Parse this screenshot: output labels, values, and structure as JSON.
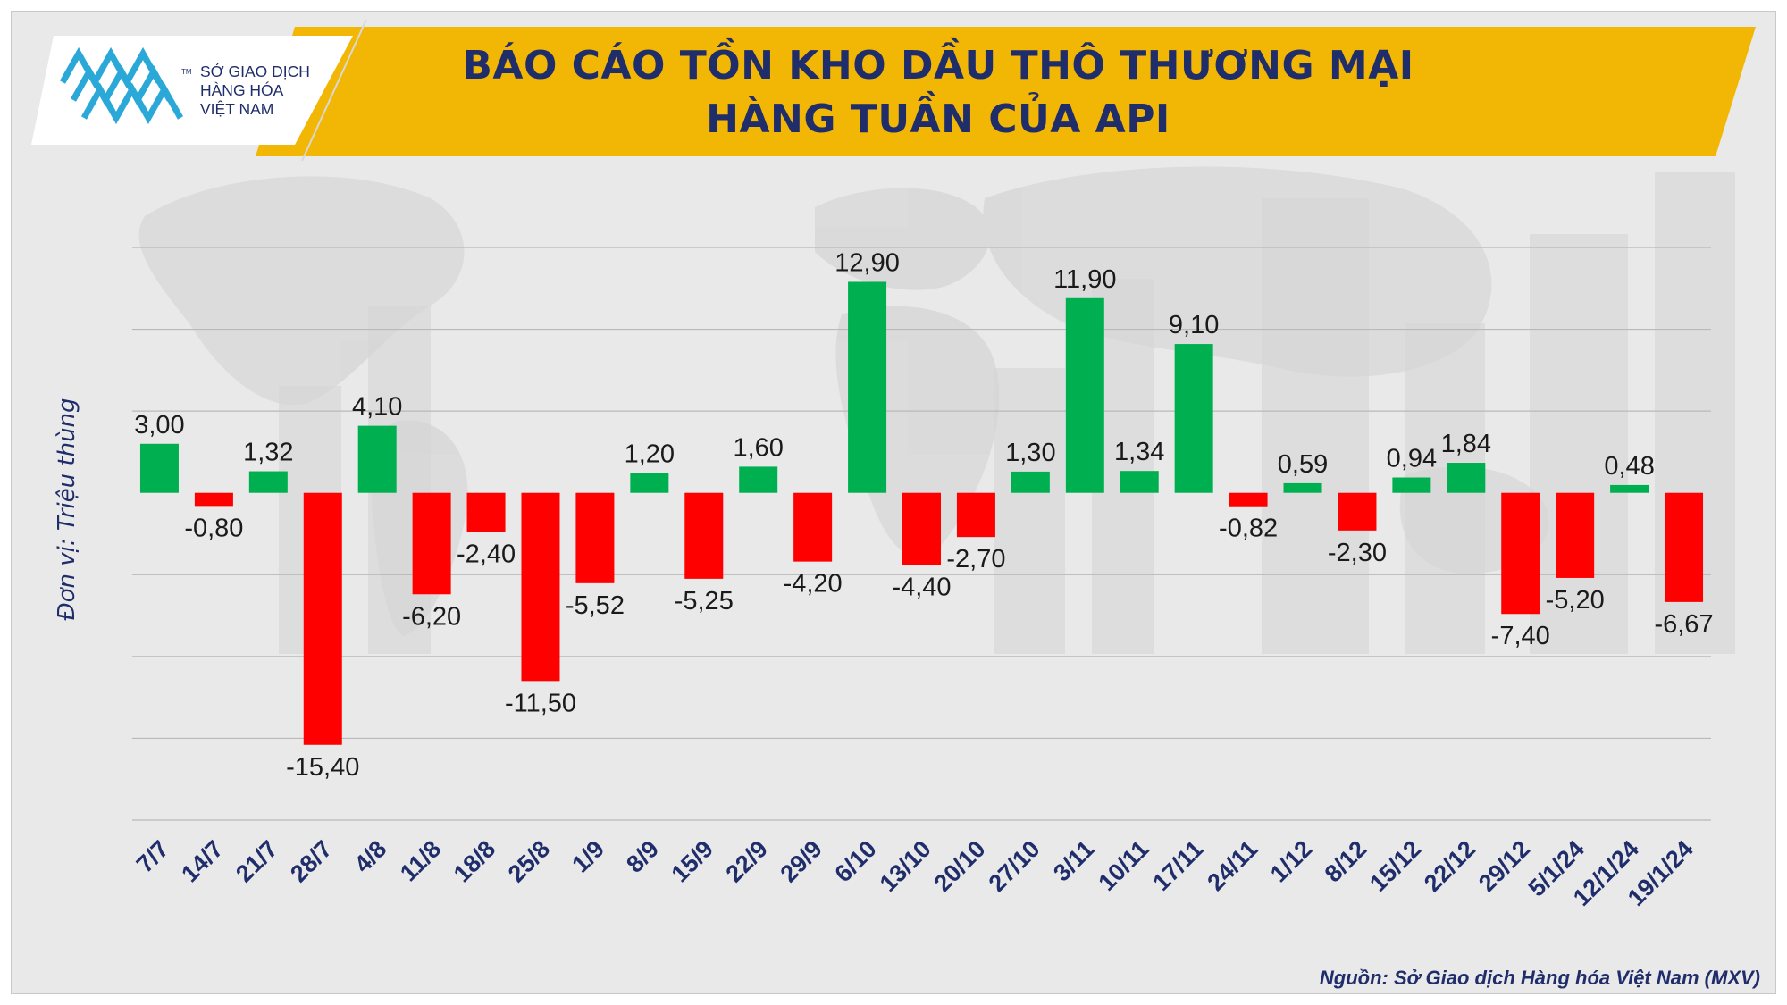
{
  "title": {
    "line1": "BÁO CÁO TỒN KHO DẦU THÔ THƯƠNG MẠI",
    "line2": "HÀNG TUẦN CỦA API"
  },
  "logo": {
    "line1": "SỞ GIAO DỊCH",
    "line2": "HÀNG HÓA",
    "line3": "VIỆT NAM",
    "trademark": "TM"
  },
  "source": "Nguồn: Sở Giao dịch Hàng hóa Việt Nam (MXV)",
  "colors": {
    "positive": "#00b050",
    "negative": "#ff0000",
    "banner": "#f2b705",
    "title": "#1f2d6b"
  },
  "chart_data": {
    "type": "bar",
    "ylabel": "Đơn vị: Triệu thùng",
    "xlabel": "",
    "ylim": [
      -20,
      15
    ],
    "grid": true,
    "categories": [
      "7/7",
      "14/7",
      "21/7",
      "28/7",
      "4/8",
      "11/8",
      "18/8",
      "25/8",
      "1/9",
      "8/9",
      "15/9",
      "22/9",
      "29/9",
      "6/10",
      "13/10",
      "20/10",
      "27/10",
      "3/11",
      "10/11",
      "17/11",
      "24/11",
      "1/12",
      "8/12",
      "15/12",
      "22/12",
      "29/12",
      "5/1/24",
      "12/1/24",
      "19/1/24"
    ],
    "values": [
      3.0,
      -0.8,
      1.32,
      -15.4,
      4.1,
      -6.2,
      -2.4,
      -11.5,
      -5.52,
      1.2,
      -5.25,
      1.6,
      -4.2,
      12.9,
      -4.4,
      -2.7,
      1.3,
      11.9,
      1.34,
      9.1,
      -0.82,
      0.59,
      -2.3,
      0.94,
      1.84,
      -7.4,
      -5.2,
      0.48,
      -6.67
    ],
    "data_labels": [
      "3,00",
      "-0,80",
      "1,32",
      "-15,40",
      "4,10",
      "-6,20",
      "-2,40",
      "-11,50",
      "-5,52",
      "1,20",
      "-5,25",
      "1,60",
      "-4,20",
      "12,90",
      "-4,40",
      "-2,70",
      "1,30",
      "11,90",
      "1,34",
      "9,10",
      "-0,82",
      "0,59",
      "-2,30",
      "0,94",
      "1,84",
      "-7,40",
      "-5,20",
      "0,48",
      "-6,67"
    ]
  }
}
